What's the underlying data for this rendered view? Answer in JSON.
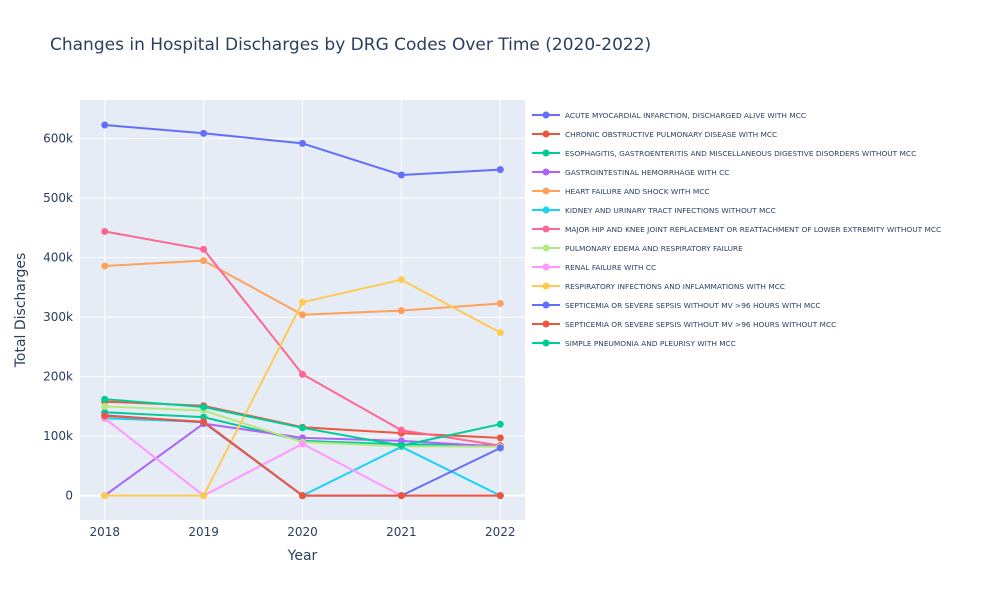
{
  "chart_data": {
    "type": "line",
    "title": "Changes in Hospital Discharges by DRG Codes Over Time (2020-2022)",
    "xlabel": "Year",
    "ylabel": "Total Discharges",
    "x": [
      2018,
      2019,
      2020,
      2021,
      2022
    ],
    "x_ticks": [
      "2018",
      "2019",
      "2020",
      "2021",
      "2022"
    ],
    "xlim": [
      2017.75,
      2022.25
    ],
    "ylim": [
      -41000,
      665000
    ],
    "y_ticks": [
      0,
      100000,
      200000,
      300000,
      400000,
      500000,
      600000
    ],
    "y_tick_labels": [
      "0",
      "100k",
      "200k",
      "300k",
      "400k",
      "500k",
      "600k"
    ],
    "grid": true,
    "legend_position": "right",
    "series": [
      {
        "name": "ACUTE MYOCARDIAL INFARCTION, DISCHARGED ALIVE WITH MCC",
        "color": "#636efa",
        "values": [
          623000,
          609000,
          592000,
          539000,
          548000
        ]
      },
      {
        "name": "CHRONIC OBSTRUCTIVE PULMONARY DISEASE WITH MCC",
        "color": "#EF553B",
        "values": [
          158000,
          151000,
          115000,
          105000,
          97000
        ]
      },
      {
        "name": "ESOPHAGITIS, GASTROENTERITIS AND MISCELLANEOUS DIGESTIVE DISORDERS WITHOUT MCC",
        "color": "#00cc96",
        "values": [
          140000,
          132000,
          92000,
          86000,
          84000
        ]
      },
      {
        "name": "GASTROINTESTINAL HEMORRHAGE WITH CC",
        "color": "#ab63fa",
        "values": [
          0,
          121000,
          97000,
          92000,
          82000
        ]
      },
      {
        "name": "HEART FAILURE AND SHOCK WITH MCC",
        "color": "#FFA15A",
        "values": [
          386000,
          395000,
          304000,
          311000,
          323000
        ]
      },
      {
        "name": "KIDNEY AND URINARY TRACT INFECTIONS WITHOUT MCC",
        "color": "#19d3f3",
        "values": [
          130000,
          124000,
          0,
          82000,
          0
        ]
      },
      {
        "name": "MAJOR HIP AND KNEE JOINT REPLACEMENT OR REATTACHMENT OF LOWER EXTREMITY WITHOUT MCC",
        "color": "#FF6692",
        "values": [
          444000,
          414000,
          204000,
          110000,
          84000
        ]
      },
      {
        "name": "PULMONARY EDEMA AND RESPIRATORY FAILURE",
        "color": "#B6E880",
        "values": [
          150000,
          143000,
          90000,
          83000,
          82000
        ]
      },
      {
        "name": "RENAL FAILURE WITH CC",
        "color": "#FF97FF",
        "values": [
          130000,
          0,
          87000,
          0,
          0
        ]
      },
      {
        "name": "RESPIRATORY INFECTIONS AND INFLAMMATIONS WITH MCC",
        "color": "#FECB52",
        "values": [
          0,
          0,
          325000,
          363000,
          274000
        ]
      },
      {
        "name": "SEPTICEMIA OR SEVERE SEPSIS WITHOUT MV >96 HOURS WITH MCC",
        "color": "#636efa",
        "values": [
          135000,
          123000,
          0,
          0,
          80000
        ]
      },
      {
        "name": "SEPTICEMIA OR SEVERE SEPSIS WITHOUT MV >96 HOURS WITHOUT MCC",
        "color": "#EF553B",
        "values": [
          134000,
          124000,
          0,
          0,
          0
        ]
      },
      {
        "name": "SIMPLE PNEUMONIA AND PLEURISY WITH MCC",
        "color": "#00cc96",
        "values": [
          162000,
          149000,
          114000,
          84000,
          120000
        ]
      }
    ]
  }
}
